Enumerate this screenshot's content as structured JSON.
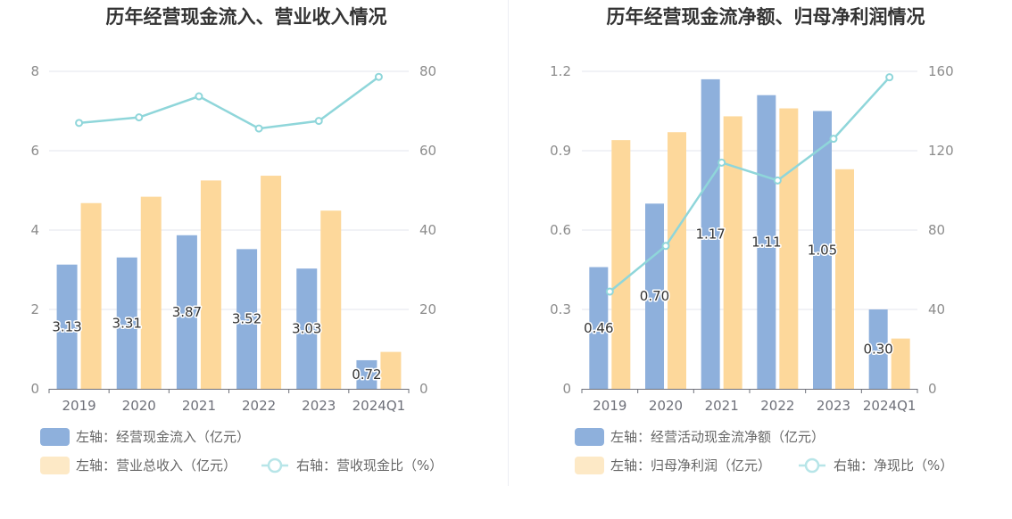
{
  "chart_data": [
    {
      "type": "bar",
      "title": "历年经营现金流入、营业收入情况",
      "categories": [
        "2019",
        "2020",
        "2021",
        "2022",
        "2023",
        "2024Q1"
      ],
      "left_axis": {
        "min": 0,
        "max": 8,
        "ticks": [
          "0",
          "2",
          "4",
          "6",
          "8"
        ]
      },
      "right_axis": {
        "min": 0,
        "max": 80,
        "ticks": [
          "0",
          "20",
          "40",
          "60",
          "80"
        ]
      },
      "series": [
        {
          "name": "左轴：经营现金流入（亿元）",
          "type": "bar",
          "axis": "left",
          "color": "#8eb0dc",
          "values": [
            3.13,
            3.31,
            3.87,
            3.52,
            3.03,
            0.72
          ],
          "labels": [
            "3.13",
            "3.31",
            "3.87",
            "3.52",
            "3.03",
            "0.72"
          ]
        },
        {
          "name": "左轴：营业总收入（亿元）",
          "type": "bar",
          "axis": "left",
          "color": "#fdd89b",
          "values": [
            4.68,
            4.84,
            5.25,
            5.37,
            4.49,
            0.93
          ]
        },
        {
          "name": "右轴：营收现金比（%）",
          "type": "line",
          "axis": "right",
          "color": "#8fd6da",
          "values": [
            67.0,
            68.4,
            73.7,
            65.6,
            67.5,
            78.6
          ]
        }
      ],
      "grid": true
    },
    {
      "type": "bar",
      "title": "历年经营现金流净额、归母净利润情况",
      "categories": [
        "2019",
        "2020",
        "2021",
        "2022",
        "2023",
        "2024Q1"
      ],
      "left_axis": {
        "min": 0,
        "max": 1.2,
        "ticks": [
          "0",
          "0.3",
          "0.6",
          "0.9",
          "1.2"
        ]
      },
      "right_axis": {
        "min": 0,
        "max": 160,
        "ticks": [
          "0",
          "40",
          "80",
          "120",
          "160"
        ]
      },
      "series": [
        {
          "name": "左轴：经营活动现金流净额（亿元）",
          "type": "bar",
          "axis": "left",
          "color": "#8eb0dc",
          "values": [
            0.46,
            0.7,
            1.17,
            1.11,
            1.05,
            0.3
          ],
          "labels": [
            "0.46",
            "0.70",
            "1.17",
            "1.11",
            "1.05",
            "0.30"
          ]
        },
        {
          "name": "左轴：归母净利润（亿元）",
          "type": "bar",
          "axis": "left",
          "color": "#fdd89b",
          "values": [
            0.94,
            0.97,
            1.03,
            1.06,
            0.83,
            0.19
          ]
        },
        {
          "name": "右轴：净现比（%）",
          "type": "line",
          "axis": "right",
          "color": "#8fd6da",
          "values": [
            49,
            72,
            114,
            105,
            126,
            157
          ]
        }
      ],
      "grid": true
    }
  ]
}
